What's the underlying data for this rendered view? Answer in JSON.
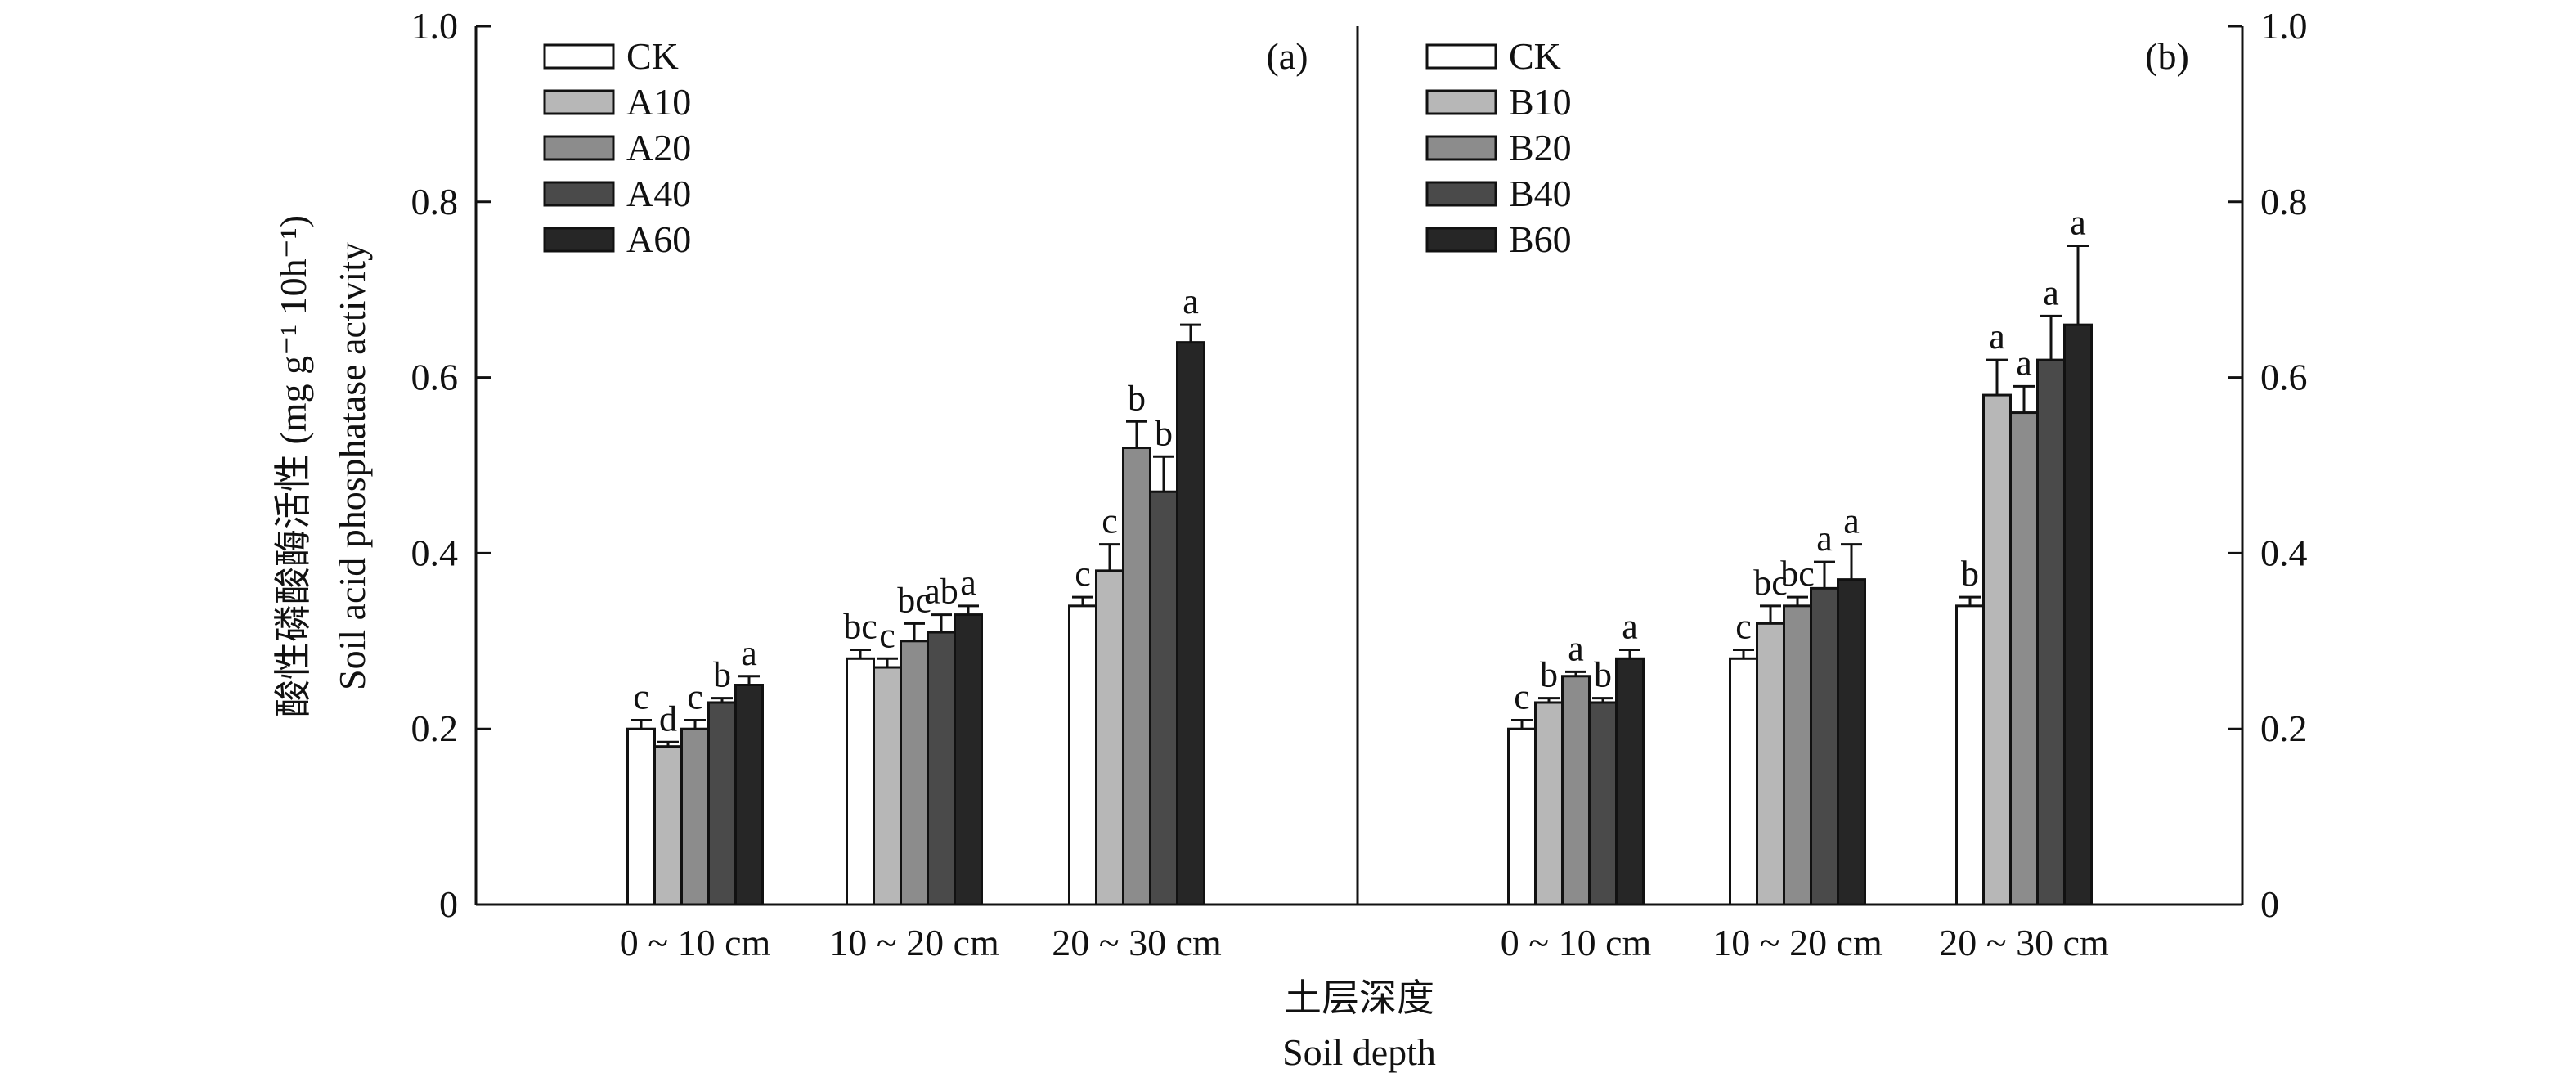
{
  "y_axis_title": {
    "cn": "酸性磷酸酶活性 (mg g⁻¹ 10h⁻¹)",
    "en": "Soil acid phosphatase activity"
  },
  "x_axis_title": {
    "cn": "土层深度",
    "en": "Soil depth"
  },
  "colors": {
    "CK": "#ffffff",
    "L10": "#b7b7b7",
    "L20": "#8c8c8c",
    "L40": "#4a4a4a",
    "L60": "#262626",
    "stroke": "#111111"
  },
  "chart_data": [
    {
      "type": "bar",
      "panel_label": "(a)",
      "categories": [
        "0 ~ 10 cm",
        "10 ~ 20 cm",
        "20 ~ 30 cm"
      ],
      "ylim": [
        0,
        1.0
      ],
      "yticks": [
        "0",
        "0.2",
        "0.4",
        "0.6",
        "0.8",
        "1.0"
      ],
      "y_axis_side": "left",
      "legend_position": "top-left",
      "series": [
        {
          "name": "CK",
          "values": [
            0.2,
            0.28,
            0.34
          ],
          "errors": [
            0.01,
            0.01,
            0.01
          ],
          "labels": [
            "c",
            "bc",
            "c"
          ]
        },
        {
          "name": "A10",
          "values": [
            0.18,
            0.27,
            0.38
          ],
          "errors": [
            0.005,
            0.01,
            0.03
          ],
          "labels": [
            "d",
            "c",
            "c"
          ]
        },
        {
          "name": "A20",
          "values": [
            0.2,
            0.3,
            0.52
          ],
          "errors": [
            0.01,
            0.02,
            0.03
          ],
          "labels": [
            "c",
            "bc",
            "b"
          ]
        },
        {
          "name": "A40",
          "values": [
            0.23,
            0.31,
            0.47
          ],
          "errors": [
            0.005,
            0.02,
            0.04
          ],
          "labels": [
            "b",
            "ab",
            "b"
          ]
        },
        {
          "name": "A60",
          "values": [
            0.25,
            0.33,
            0.64
          ],
          "errors": [
            0.01,
            0.01,
            0.02
          ],
          "labels": [
            "a",
            "a",
            "a"
          ]
        }
      ]
    },
    {
      "type": "bar",
      "panel_label": "(b)",
      "categories": [
        "0 ~ 10 cm",
        "10 ~ 20 cm",
        "20 ~ 30 cm"
      ],
      "ylim": [
        0,
        1.0
      ],
      "yticks": [
        "0",
        "0.2",
        "0.4",
        "0.6",
        "0.8",
        "1.0"
      ],
      "y_axis_side": "right",
      "legend_position": "top-left",
      "series": [
        {
          "name": "CK",
          "values": [
            0.2,
            0.28,
            0.34
          ],
          "errors": [
            0.01,
            0.01,
            0.01
          ],
          "labels": [
            "c",
            "c",
            "b"
          ]
        },
        {
          "name": "B10",
          "values": [
            0.23,
            0.32,
            0.58
          ],
          "errors": [
            0.005,
            0.02,
            0.04
          ],
          "labels": [
            "b",
            "bc",
            "a"
          ]
        },
        {
          "name": "B20",
          "values": [
            0.26,
            0.34,
            0.56
          ],
          "errors": [
            0.005,
            0.01,
            0.03
          ],
          "labels": [
            "a",
            "bc",
            "a"
          ]
        },
        {
          "name": "B40",
          "values": [
            0.23,
            0.36,
            0.62
          ],
          "errors": [
            0.005,
            0.03,
            0.05
          ],
          "labels": [
            "b",
            "a",
            "a"
          ]
        },
        {
          "name": "B60",
          "values": [
            0.28,
            0.37,
            0.66
          ],
          "errors": [
            0.01,
            0.04,
            0.09
          ],
          "labels": [
            "a",
            "a",
            "a"
          ]
        }
      ]
    }
  ]
}
